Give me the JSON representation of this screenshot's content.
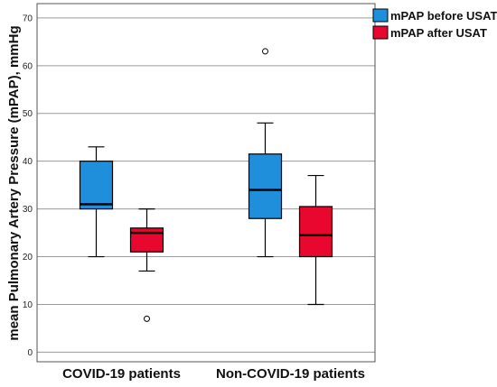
{
  "chart_data": {
    "type": "box",
    "title": "",
    "xlabel": "",
    "ylabel": "mean Pulmonary Artery Pressure (mPAP), mmHg",
    "ylim": [
      -2,
      73
    ],
    "yticks": [
      0,
      10,
      20,
      30,
      40,
      50,
      60,
      70
    ],
    "grid": "horizontal",
    "legend_position": "top-right",
    "categories": [
      "COVID-19 patients",
      "Non-COVID-19 patients"
    ],
    "series": [
      {
        "name": "mPAP before USAT",
        "color": "#1f8fdc",
        "boxes": [
          {
            "whisker_low": 20,
            "q1": 30,
            "median": 31,
            "q3": 40,
            "whisker_high": 43,
            "outliers": []
          },
          {
            "whisker_low": 20,
            "q1": 28,
            "median": 34,
            "q3": 41.5,
            "whisker_high": 48,
            "outliers": [
              63
            ]
          }
        ]
      },
      {
        "name": "mPAP after USAT",
        "color": "#e8072e",
        "boxes": [
          {
            "whisker_low": 17,
            "q1": 21,
            "median": 25,
            "q3": 26,
            "whisker_high": 30,
            "outliers": [
              7
            ]
          },
          {
            "whisker_low": 10,
            "q1": 20,
            "median": 24.5,
            "q3": 30.5,
            "whisker_high": 37,
            "outliers": []
          }
        ]
      }
    ]
  }
}
